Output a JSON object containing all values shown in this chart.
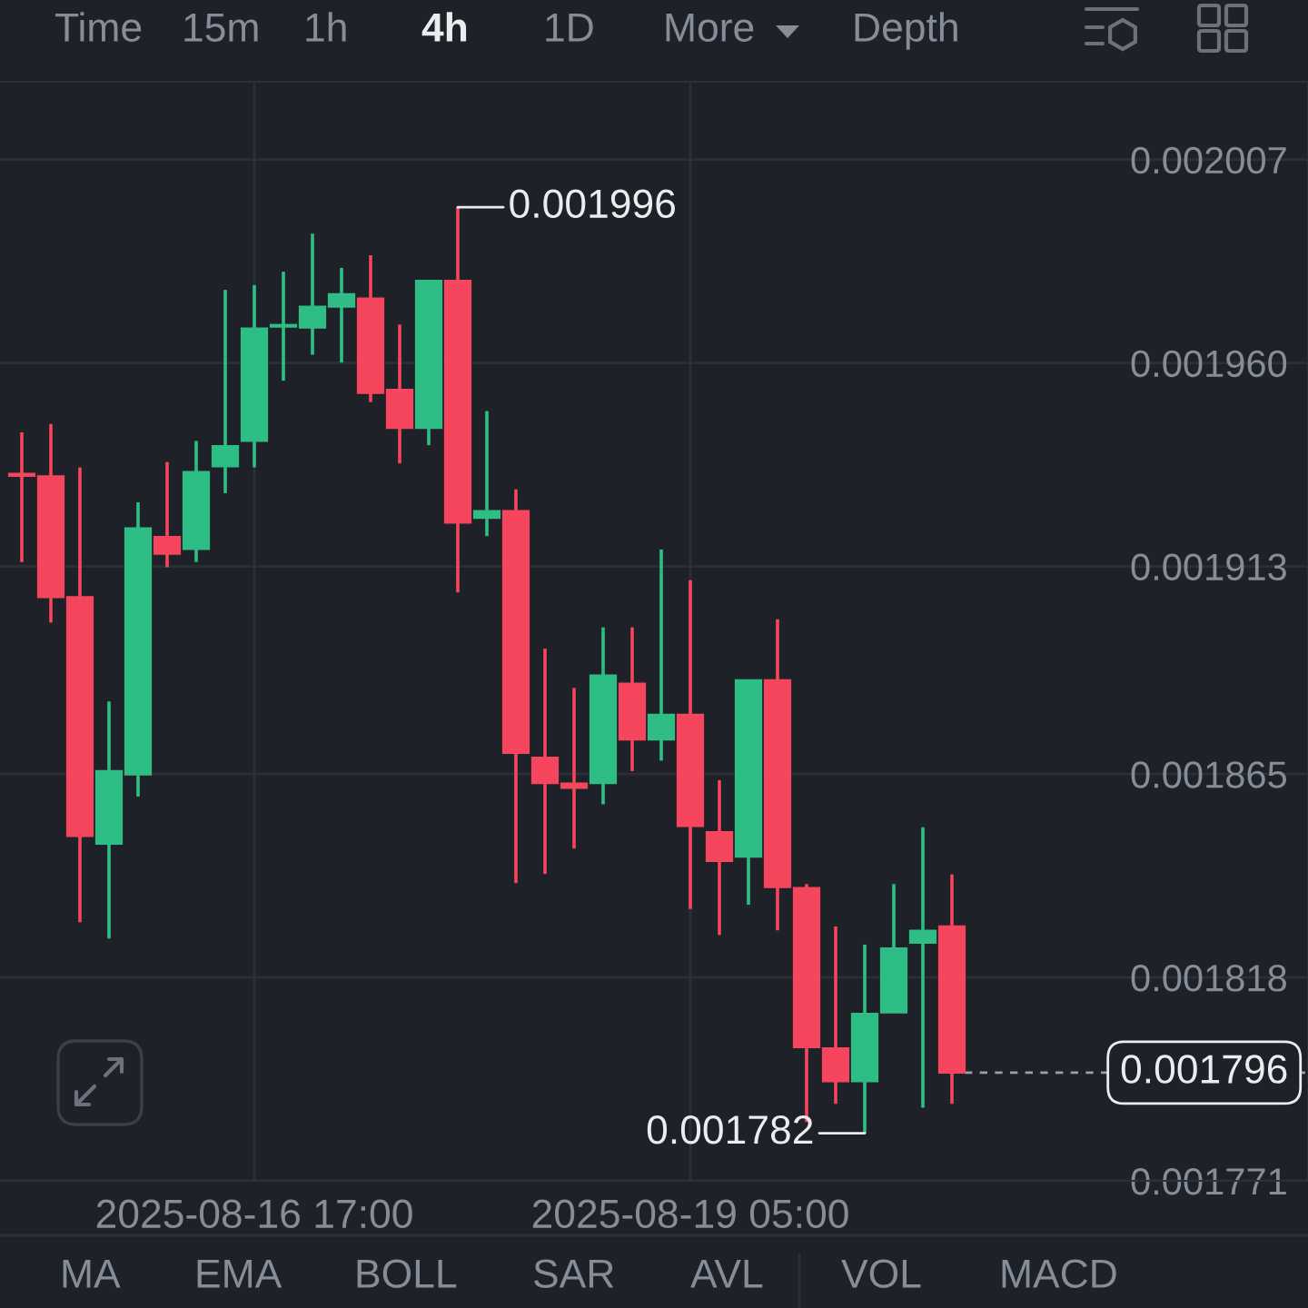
{
  "chart_data": {
    "type": "candlestick",
    "x": [
      "2025-08-15T09:00",
      "2025-08-15T13:00",
      "2025-08-15T17:00",
      "2025-08-15T21:00",
      "2025-08-16T01:00",
      "2025-08-16T05:00",
      "2025-08-16T09:00",
      "2025-08-16T13:00",
      "2025-08-16T17:00",
      "2025-08-16T21:00",
      "2025-08-17T01:00",
      "2025-08-17T05:00",
      "2025-08-17T09:00",
      "2025-08-17T13:00",
      "2025-08-17T17:00",
      "2025-08-17T21:00",
      "2025-08-18T01:00",
      "2025-08-18T05:00",
      "2025-08-18T09:00",
      "2025-08-18T13:00",
      "2025-08-18T17:00",
      "2025-08-18T21:00",
      "2025-08-19T01:00",
      "2025-08-19T05:00",
      "2025-08-19T09:00",
      "2025-08-19T13:00",
      "2025-08-19T17:00",
      "2025-08-19T21:00",
      "2025-08-20T01:00",
      "2025-08-20T05:00",
      "2025-08-20T09:00",
      "2025-08-20T13:00",
      "2025-08-20T17:00"
    ],
    "ohlc": [
      [
        0.0019344,
        0.001944,
        0.001914,
        0.0019339
      ],
      [
        0.0019338,
        0.0019459,
        0.0019,
        0.0019059
      ],
      [
        0.0019059,
        0.0019359,
        0.0018308,
        0.0018507
      ],
      [
        0.0018489,
        0.0018818,
        0.001827,
        0.0018657
      ],
      [
        0.0018649,
        0.0019278,
        0.0018598,
        0.0019218
      ],
      [
        0.0019198,
        0.0019371,
        0.0019128,
        0.0019159
      ],
      [
        0.001917,
        0.001942,
        0.001914,
        0.0019348
      ],
      [
        0.0019361,
        0.0019769,
        0.0019299,
        0.0019408
      ],
      [
        0.001942,
        0.001978,
        0.0019359,
        0.001968
      ],
      [
        0.0019684,
        0.0019811,
        0.0019559,
        0.0019688
      ],
      [
        0.0019682,
        0.0019899,
        0.0019619,
        0.001973
      ],
      [
        0.001973,
        0.001982,
        0.0019601,
        0.0019759
      ],
      [
        0.0019749,
        0.0019849,
        0.001951,
        0.0019531
      ],
      [
        0.0019538,
        0.0019689,
        0.0019368,
        0.001945
      ],
      [
        0.001945,
        0.001979,
        0.001941,
        0.001979
      ],
      [
        0.001979,
        0.001996,
        0.001907,
        0.0019231
      ],
      [
        0.0019242,
        0.0019489,
        0.00192,
        0.0019258
      ],
      [
        0.0019258,
        0.0019308,
        0.0018398,
        0.0018699
      ],
      [
        0.0018688,
        0.001894,
        0.0018419,
        0.0018629
      ],
      [
        0.0018628,
        0.0018849,
        0.0018478,
        0.0018618
      ],
      [
        0.0018629,
        0.0018989,
        0.001858,
        0.0018878
      ],
      [
        0.0018859,
        0.0018989,
        0.0018657,
        0.001873
      ],
      [
        0.001873,
        0.0019169,
        0.0018681,
        0.0018787
      ],
      [
        0.0018787,
        0.0019098,
        0.0018338,
        0.001853
      ],
      [
        0.0018516,
        0.0018636,
        0.0018278,
        0.0018449
      ],
      [
        0.0018459,
        0.0018867,
        0.0018348,
        0.0018867
      ],
      [
        0.0018867,
        0.0019008,
        0.0018289,
        0.0018389
      ],
      [
        0.0018387,
        0.0018396,
        0.0017846,
        0.0018019
      ],
      [
        0.0018016,
        0.0018298,
        0.0017888,
        0.001794
      ],
      [
        0.001794,
        0.0018256,
        0.001782,
        0.0018096
      ],
      [
        0.0018099,
        0.0018396,
        0.0018099,
        0.0018247
      ],
      [
        0.001826,
        0.0018527,
        0.0017879,
        0.0018288
      ],
      [
        0.0018298,
        0.0018418,
        0.0017888,
        0.001796
      ]
    ],
    "colors": [
      "#f6465d",
      "#f6465d",
      "#f6465d",
      "#2ebd85",
      "#2ebd85",
      "#f6465d",
      "#2ebd85",
      "#2ebd85",
      "#2ebd85",
      "#2ebd85",
      "#2ebd85",
      "#2ebd85",
      "#f6465d",
      "#f6465d",
      "#2ebd85",
      "#f6465d",
      "#2ebd85",
      "#f6465d",
      "#f6465d",
      "#f6465d",
      "#2ebd85",
      "#f6465d",
      "#2ebd85",
      "#f6465d",
      "#f6465d",
      "#2ebd85",
      "#f6465d",
      "#f6465d",
      "#f6465d",
      "#2ebd85",
      "#2ebd85",
      "#2ebd85",
      "#f6465d"
    ],
    "xlim": [
      "2025-08-15T06:00",
      "2025-08-22T18:00"
    ],
    "xticks": [
      {
        "value": "2025-08-16T17:00",
        "label": "2025-08-16 17:00"
      },
      {
        "value": "2025-08-19T05:00",
        "label": "2025-08-19 05:00"
      }
    ],
    "ylim": [
      0.001771,
      0.002025
    ],
    "yticks": [
      0.002007,
      {
        "value": 0.00196,
        "label": "0.001960"
      },
      0.001913,
      0.001865,
      0.001818,
      0.001771
    ],
    "grid": true,
    "ref_lines": [
      {
        "axis": "y",
        "value": 0.001796,
        "label": "0.001796",
        "color": "#9aa0a8",
        "line_style": "dashed"
      }
    ],
    "annotations": [
      {
        "text": "0.001996",
        "x": "2025-08-17T21:00",
        "y": 0.001996
      },
      {
        "text": "0.001782",
        "x": "2025-08-20T05:00",
        "y": 0.001782
      },
      "Time",
      "15m",
      "1h",
      "4h",
      "1D",
      "More",
      "Depth",
      "MA",
      "EMA",
      "BOLL",
      "SAR",
      "AVL",
      "VOL",
      "MACD"
    ]
  }
}
